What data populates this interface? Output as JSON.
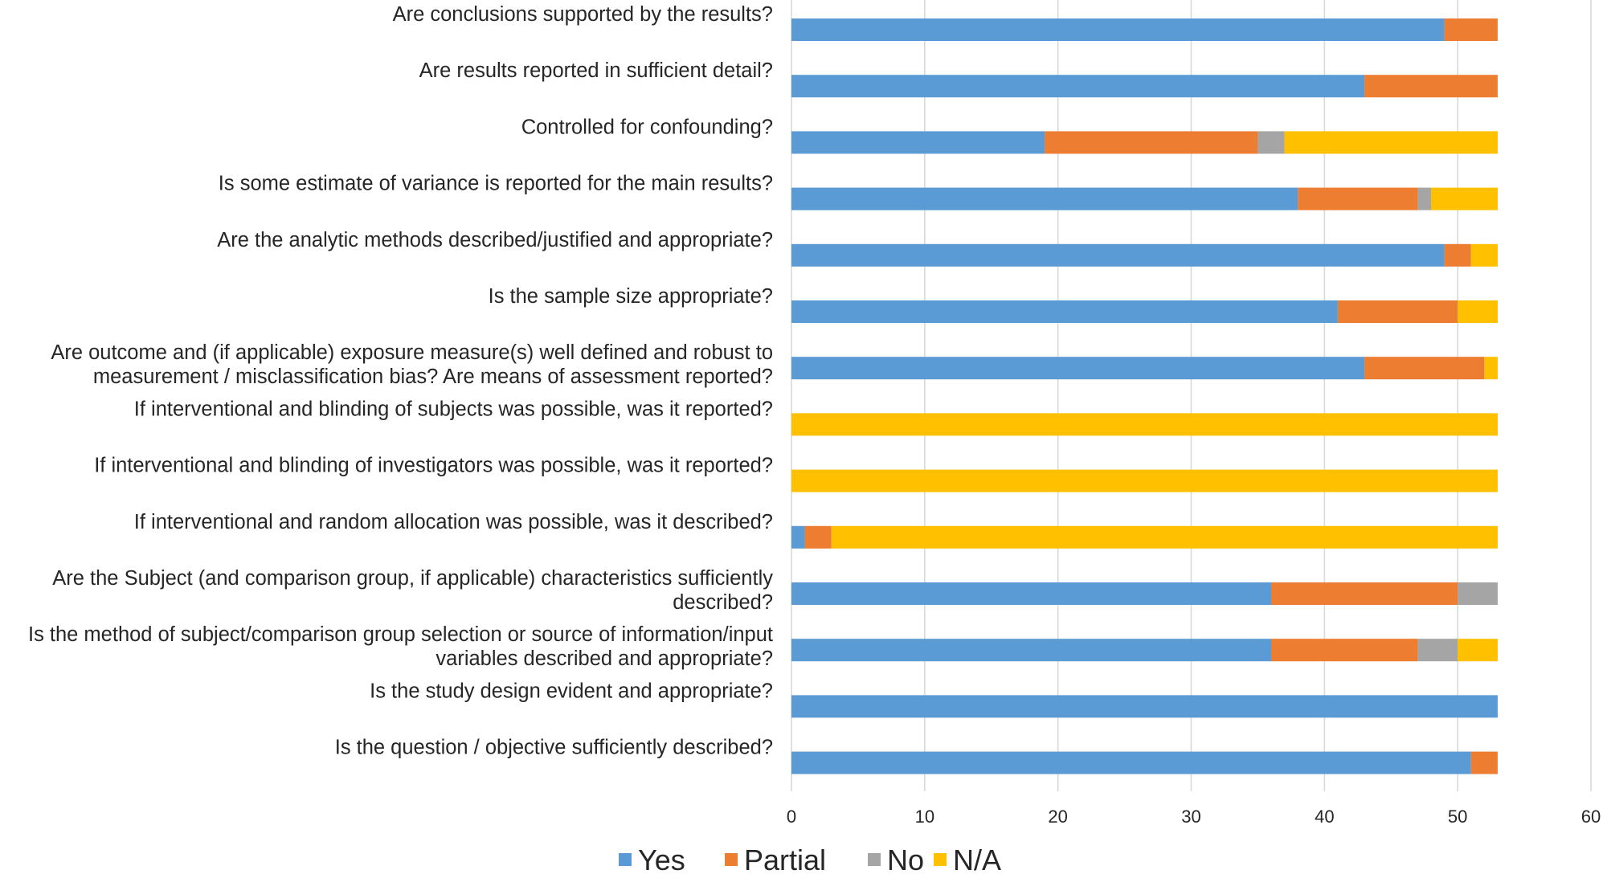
{
  "chart_data": {
    "type": "bar",
    "orientation": "horizontal",
    "stacked": true,
    "title": "",
    "xlabel": "",
    "ylabel": "",
    "xlim": [
      0,
      60
    ],
    "xticks": [
      0,
      10,
      20,
      30,
      40,
      50,
      60
    ],
    "grid": "vertical",
    "legend_position": "bottom",
    "categories": [
      [
        "Are conclusions supported by the results?"
      ],
      [
        "Are results reported in sufficient detail?"
      ],
      [
        "Controlled for confounding?"
      ],
      [
        "Is some estimate of variance is reported for the main results?"
      ],
      [
        "Are the analytic methods described/justified and appropriate?"
      ],
      [
        "Is the sample size appropriate?"
      ],
      [
        "Are outcome and (if applicable) exposure measure(s) well defined and robust to",
        "measurement / misclassification bias? Are means of assessment reported?"
      ],
      [
        "If interventional and blinding of subjects was possible, was it reported?"
      ],
      [
        "If interventional and blinding of investigators was possible, was it reported?"
      ],
      [
        "If interventional and random allocation was possible, was it described?"
      ],
      [
        "Are the Subject (and comparison group, if applicable) characteristics sufficiently",
        "described?"
      ],
      [
        "Is the method of subject/comparison group selection or source of information/input",
        "variables described and appropriate?"
      ],
      [
        "Is the study design evident and appropriate?"
      ],
      [
        "Is the question / objective sufficiently described?"
      ]
    ],
    "series": [
      {
        "name": "Yes",
        "color": "#5b9bd5",
        "values": [
          49,
          43,
          19,
          38,
          49,
          41,
          43,
          0,
          0,
          1,
          36,
          36,
          53,
          51
        ]
      },
      {
        "name": "Partial",
        "color": "#ed7d31",
        "values": [
          4,
          10,
          16,
          9,
          2,
          9,
          9,
          0,
          0,
          2,
          14,
          11,
          0,
          2
        ]
      },
      {
        "name": "No",
        "color": "#a5a5a5",
        "values": [
          0,
          0,
          2,
          1,
          0,
          0,
          0,
          0,
          0,
          0,
          3,
          3,
          0,
          0
        ]
      },
      {
        "name": "N/A",
        "color": "#ffc000",
        "values": [
          0,
          0,
          16,
          5,
          2,
          3,
          1,
          53,
          53,
          50,
          0,
          3,
          0,
          0
        ]
      }
    ]
  }
}
